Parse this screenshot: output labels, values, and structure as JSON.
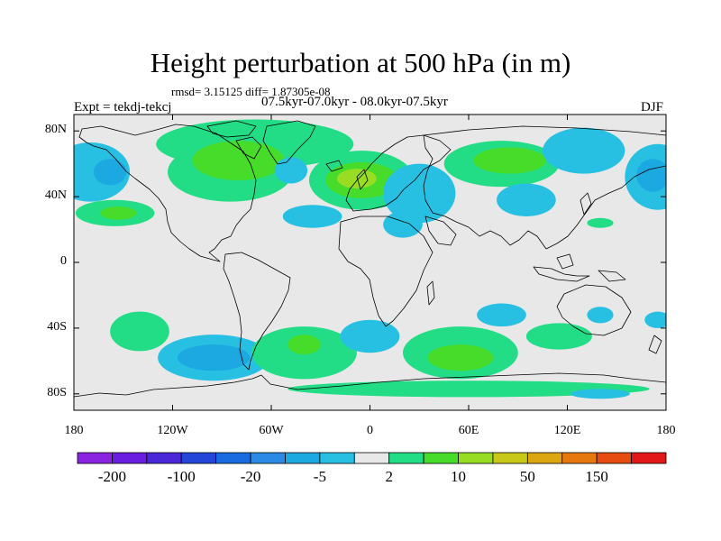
{
  "map": {
    "title": "Height perturbation at 500 hPa (in m)",
    "stats": "rmsd= 3.15125 diff= 1.87305e-08",
    "expt": "Expt = tekdj-tekcj",
    "period": "07.5kyr-07.0kyr - 08.0kyr-07.5kyr",
    "season": "DJF",
    "lat_ticks": [
      "80N",
      "40N",
      "0",
      "40S",
      "80S"
    ],
    "lat_values": [
      80,
      40,
      0,
      -40,
      -80
    ],
    "lon_ticks": [
      "180",
      "120W",
      "60W",
      "0",
      "60E",
      "120E",
      "180"
    ],
    "lon_values": [
      -180,
      -120,
      -60,
      0,
      60,
      120,
      180
    ],
    "lat_range": [
      -90,
      90
    ],
    "lon_range": [
      -180,
      180
    ],
    "background_color": "#e8e8e8"
  },
  "colorbar": {
    "colors": [
      "#8a24e0",
      "#6a1ee0",
      "#4a28d8",
      "#2446d8",
      "#1a6ae0",
      "#2a8ae6",
      "#1ca8e0",
      "#28c0e2",
      "#e8e8e8",
      "#22dc86",
      "#48dc2a",
      "#98dc24",
      "#c8c818",
      "#dca610",
      "#e67810",
      "#e64c10",
      "#e21818"
    ],
    "tick_labels": [
      "-200",
      "-100",
      "-20",
      "-5",
      "2",
      "10",
      "50",
      "150"
    ]
  },
  "anomalies": [
    {
      "lon": -170,
      "lat": 55,
      "rx": 24,
      "ry": 18,
      "level": 7
    },
    {
      "lon": -158,
      "lat": 55,
      "rx": 10,
      "ry": 8,
      "level": 6
    },
    {
      "lon": -155,
      "lat": 30,
      "rx": 24,
      "ry": 8,
      "level": 9
    },
    {
      "lon": -153,
      "lat": 30,
      "rx": 11,
      "ry": 4,
      "level": 10
    },
    {
      "lon": -70,
      "lat": 72,
      "rx": 60,
      "ry": 15,
      "level": 9
    },
    {
      "lon": -85,
      "lat": 55,
      "rx": 38,
      "ry": 18,
      "level": 9
    },
    {
      "lon": -80,
      "lat": 62,
      "rx": 28,
      "ry": 12,
      "level": 10
    },
    {
      "lon": -48,
      "lat": 56,
      "rx": 10,
      "ry": 8,
      "level": 7
    },
    {
      "lon": -5,
      "lat": 50,
      "rx": 32,
      "ry": 18,
      "level": 9
    },
    {
      "lon": -5,
      "lat": 50,
      "rx": 22,
      "ry": 11,
      "level": 10
    },
    {
      "lon": -8,
      "lat": 51,
      "rx": 12,
      "ry": 6,
      "level": 11
    },
    {
      "lon": -35,
      "lat": 28,
      "rx": 18,
      "ry": 7,
      "level": 7
    },
    {
      "lon": 20,
      "lat": 23,
      "rx": 12,
      "ry": 8,
      "level": 7
    },
    {
      "lon": 30,
      "lat": 42,
      "rx": 22,
      "ry": 18,
      "level": 7
    },
    {
      "lon": 80,
      "lat": 60,
      "rx": 35,
      "ry": 14,
      "level": 9
    },
    {
      "lon": 85,
      "lat": 62,
      "rx": 22,
      "ry": 8,
      "level": 10
    },
    {
      "lon": 95,
      "lat": 38,
      "rx": 18,
      "ry": 10,
      "level": 7
    },
    {
      "lon": 130,
      "lat": 68,
      "rx": 25,
      "ry": 14,
      "level": 7
    },
    {
      "lon": 175,
      "lat": 52,
      "rx": 20,
      "ry": 20,
      "level": 7
    },
    {
      "lon": 172,
      "lat": 53,
      "rx": 10,
      "ry": 10,
      "level": 6
    },
    {
      "lon": 140,
      "lat": 24,
      "rx": 8,
      "ry": 3,
      "level": 9
    },
    {
      "lon": -140,
      "lat": -42,
      "rx": 18,
      "ry": 12,
      "level": 9
    },
    {
      "lon": -95,
      "lat": -58,
      "rx": 34,
      "ry": 14,
      "level": 7
    },
    {
      "lon": -95,
      "lat": -58,
      "rx": 22,
      "ry": 8,
      "level": 6
    },
    {
      "lon": -40,
      "lat": -55,
      "rx": 32,
      "ry": 16,
      "level": 9
    },
    {
      "lon": -40,
      "lat": -50,
      "rx": 10,
      "ry": 6,
      "level": 10
    },
    {
      "lon": 0,
      "lat": -45,
      "rx": 18,
      "ry": 10,
      "level": 7
    },
    {
      "lon": 55,
      "lat": -55,
      "rx": 35,
      "ry": 16,
      "level": 9
    },
    {
      "lon": 55,
      "lat": -58,
      "rx": 20,
      "ry": 8,
      "level": 10
    },
    {
      "lon": 80,
      "lat": -32,
      "rx": 15,
      "ry": 7,
      "level": 7
    },
    {
      "lon": 115,
      "lat": -45,
      "rx": 20,
      "ry": 8,
      "level": 9
    },
    {
      "lon": 140,
      "lat": -32,
      "rx": 8,
      "ry": 5,
      "level": 7
    },
    {
      "lon": 175,
      "lat": -35,
      "rx": 8,
      "ry": 5,
      "level": 7
    },
    {
      "lon": 60,
      "lat": -77,
      "rx": 110,
      "ry": 5,
      "level": 9
    },
    {
      "lon": 140,
      "lat": -80,
      "rx": 18,
      "ry": 3,
      "level": 7
    }
  ]
}
